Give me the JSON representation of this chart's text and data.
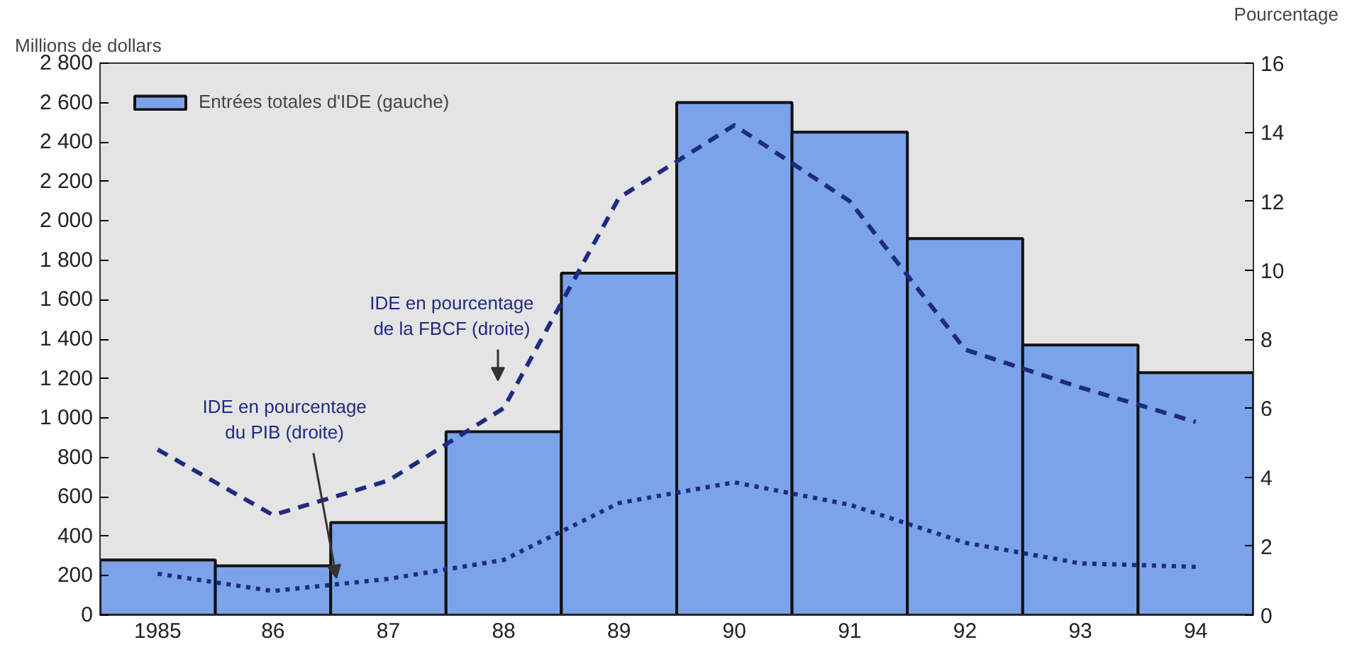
{
  "chart_data": {
    "type": "bar",
    "ylabel": "Millions de dollars",
    "y2label": "Pourcentage",
    "categories": [
      "1985",
      "86",
      "87",
      "88",
      "89",
      "90",
      "91",
      "92",
      "93",
      "94"
    ],
    "series": [
      {
        "name": "Entrées totales d'IDE (gauche)",
        "color": "#7ba3ea",
        "values": [
          280,
          250,
          470,
          930,
          1735,
          2600,
          2450,
          1910,
          1370,
          1230
        ]
      },
      {
        "name": "IDE en pourcentage de la FBCF (droite)",
        "type": "line",
        "axis": "y2",
        "line_style": "dashed",
        "color": "#1f2a80",
        "values": [
          4.8,
          2.9,
          3.9,
          6.0,
          12.1,
          14.2,
          12.0,
          7.7,
          6.6,
          5.6
        ]
      },
      {
        "name": "IDE en pourcentage du PIB (droite)",
        "type": "line",
        "axis": "y2",
        "line_style": "dotted",
        "color": "#1f2a80",
        "values": [
          1.2,
          0.7,
          1.05,
          1.6,
          3.25,
          3.85,
          3.2,
          2.1,
          1.5,
          1.4
        ]
      }
    ],
    "ylim": [
      0,
      2800
    ],
    "yticks": [
      0,
      {
        "value": 200,
        "label": "200"
      },
      {
        "value": 400,
        "label": "400"
      },
      {
        "value": 600,
        "label": "600"
      },
      {
        "value": 800,
        "label": "800"
      },
      {
        "value": 1000,
        "label": "1 000"
      },
      {
        "value": 1200,
        "label": "1 200"
      },
      {
        "value": 1400,
        "label": "1 400"
      },
      {
        "value": 1600,
        "label": "1 600"
      },
      {
        "value": 1800,
        "label": "1 800"
      },
      {
        "value": 2000,
        "label": "2 000"
      },
      {
        "value": 2200,
        "label": "2 200"
      },
      {
        "value": 2400,
        "label": "2 400"
      },
      {
        "value": 2600,
        "label": "2 600"
      },
      {
        "value": 2800,
        "label": "2 800"
      }
    ],
    "y2lim": [
      0,
      16
    ],
    "y2ticks": [
      0,
      2,
      4,
      6,
      8,
      10,
      12,
      14,
      16
    ],
    "grid": false,
    "legend": "top left"
  }
}
